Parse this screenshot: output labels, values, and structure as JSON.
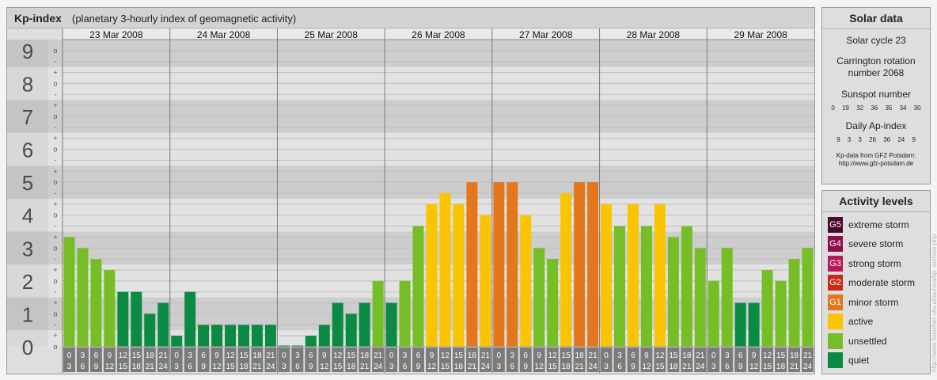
{
  "header": {
    "title": "Kp-index",
    "subtitle": "(planetary 3-hourly index of geomagnetic activity)"
  },
  "chart_data": {
    "type": "bar",
    "title": "Kp-index",
    "subtitle": "(planetary 3-hourly index of geomagnetic activity)",
    "ylim": [
      0,
      9
    ],
    "y_major_ticks": [
      "0",
      "1",
      "2",
      "3",
      "4",
      "5",
      "6",
      "7",
      "8",
      "9"
    ],
    "y_minor_ticks": [
      "o",
      "+",
      "-",
      "o",
      "+",
      "-",
      "o",
      "+",
      "-",
      "o",
      "+",
      "-",
      "o",
      "+",
      "-",
      "o",
      "+",
      "-",
      "o",
      "+",
      "-",
      "o",
      "+",
      "-",
      "o",
      "+",
      "-",
      "o"
    ],
    "days": [
      "23 Mar 2008",
      "24 Mar 2008",
      "25 Mar 2008",
      "26 Mar 2008",
      "27 Mar 2008",
      "28 Mar 2008",
      "29 Mar 2008"
    ],
    "interval_start_labels": [
      "0",
      "3",
      "6",
      "9",
      "12",
      "15",
      "18",
      "21"
    ],
    "interval_end_labels": [
      "3",
      "6",
      "9",
      "12",
      "15",
      "18",
      "21",
      "24"
    ],
    "series": [
      {
        "values": [
          3.333,
          3.0,
          2.667,
          2.333,
          1.667,
          1.667,
          1.0,
          1.333,
          0.333,
          1.667,
          0.667,
          0.667,
          0.667,
          0.667,
          0.667,
          0.667,
          0.0,
          0.0,
          0.333,
          0.667,
          1.333,
          1.0,
          1.333,
          2.0,
          1.333,
          2.0,
          3.667,
          4.333,
          4.667,
          4.333,
          5.0,
          4.0,
          5.0,
          5.0,
          4.0,
          3.0,
          2.667,
          4.667,
          5.0,
          5.0,
          4.333,
          3.667,
          4.333,
          3.667,
          4.333,
          3.333,
          3.667,
          3.0,
          2.0,
          3.0,
          1.333,
          1.333,
          2.333,
          2.0,
          2.667,
          3.0
        ]
      }
    ],
    "grid": true,
    "colors": {
      "quiet": "#0b8a44",
      "unsettled": "#76be26",
      "active": "#fac400",
      "minor_storm": "#e4771c",
      "moderate_storm": "#cc2a18",
      "strong_storm": "#b8185a",
      "severe_storm": "#8e0f4e",
      "extreme_storm": "#4a0a2a"
    }
  },
  "solar_data": {
    "title": "Solar data",
    "cycle": "Solar cycle 23",
    "carrington_line1": "Carrington rotation",
    "carrington_line2": "number 2068",
    "sunspot_label": "Sunspot number",
    "sunspot_values": "0 19 32 36 35 34 30",
    "ap_label": "Daily Ap-index",
    "ap_values": "9 3 3 26 36 24 9",
    "source_line1": "Kp-data from GFZ Potsdam:",
    "source_line2": "http://www.gfz-potsdam.de"
  },
  "activity_levels": {
    "title": "Activity levels",
    "items": [
      {
        "code": "G5",
        "label": "extreme storm",
        "color": "#4a0a2a"
      },
      {
        "code": "G4",
        "label": "severe storm",
        "color": "#8e0f4e"
      },
      {
        "code": "G3",
        "label": "strong storm",
        "color": "#b8185a"
      },
      {
        "code": "G2",
        "label": "moderate storm",
        "color": "#cc2a18"
      },
      {
        "code": "G1",
        "label": "minor storm",
        "color": "#e4771c"
      },
      {
        "code": "",
        "label": "active",
        "color": "#fac400"
      },
      {
        "code": "",
        "label": "unsettled",
        "color": "#76be26"
      },
      {
        "code": "",
        "label": "quiet",
        "color": "#0b8a44"
      }
    ]
  },
  "credit": "http://www.fleischer-ukv.at/aurora/kp_archive.php"
}
